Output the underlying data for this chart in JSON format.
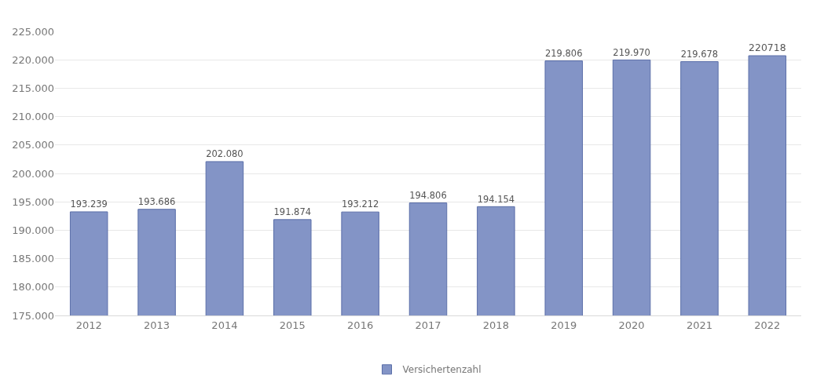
{
  "chart_data": {
    "type": "bar",
    "categories": [
      "2012",
      "2013",
      "2014",
      "2015",
      "2016",
      "2017",
      "2018",
      "2019",
      "2020",
      "2021",
      "2022"
    ],
    "series": [
      {
        "name": "Versichertenzahl",
        "color": "#8394c6",
        "values": [
          193239,
          193686,
          202080,
          191874,
          193212,
          194806,
          194154,
          219806,
          219970,
          219678,
          220718
        ],
        "value_labels": [
          "193.239",
          "193.686",
          "202.080",
          "191.874",
          "193.212",
          "194.806",
          "194.154",
          "219.806",
          "219.970",
          "219.678",
          "220718"
        ]
      }
    ],
    "ylim": [
      175000,
      225000
    ],
    "yticks": [
      {
        "value": 175000,
        "label": "175.000"
      },
      {
        "value": 180000,
        "label": "180.000"
      },
      {
        "value": 185000,
        "label": "185.000"
      },
      {
        "value": 190000,
        "label": "190.000"
      },
      {
        "value": 195000,
        "label": "195.000"
      },
      {
        "value": 200000,
        "label": "200.000"
      },
      {
        "value": 205000,
        "label": "205.000"
      },
      {
        "value": 210000,
        "label": "210.000"
      },
      {
        "value": 215000,
        "label": "215.000"
      },
      {
        "value": 220000,
        "label": "220.000"
      },
      {
        "value": 225000,
        "label": "225.000"
      }
    ],
    "grid": "y",
    "legend": "bottom"
  }
}
